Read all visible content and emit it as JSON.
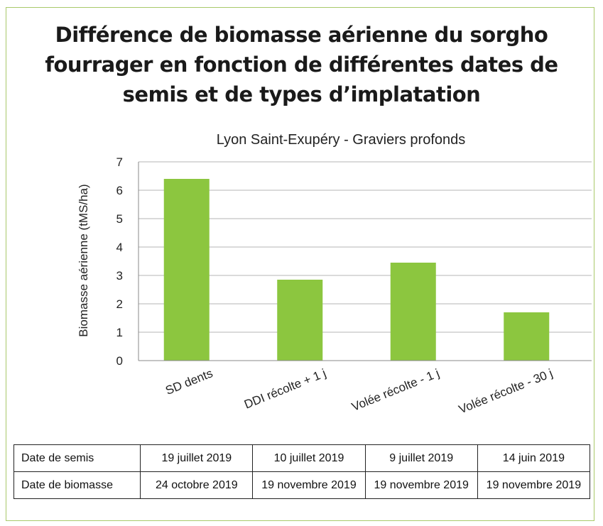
{
  "header": {
    "title_line1": "Différence de biomasse aérienne du sorgho",
    "title_line2": "fourrager en fonction de différentes dates de",
    "title_line3": "semis et de types d’implatation"
  },
  "chart_data": {
    "type": "bar",
    "title": "Lyon Saint-Exupéry - Graviers profonds",
    "xlabel": "",
    "ylabel": "Biomasse aérienne (tMS/ha)",
    "ylim": [
      0,
      7
    ],
    "yticks": [
      "0",
      "1",
      "2",
      "3",
      "4",
      "5",
      "6",
      "7"
    ],
    "grid": true,
    "bar_color": "#8cc63f",
    "categories": [
      "SD dents",
      "DDI récolte + 1 j",
      "Volée récolte - 1 j",
      "Volée récolte - 30 j"
    ],
    "values": [
      6.4,
      2.85,
      3.45,
      1.7
    ]
  },
  "table": {
    "rows": [
      {
        "label": "Date de semis",
        "cells": [
          "19 juillet 2019",
          "10 juillet 2019",
          "9 juillet 2019",
          "14 juin 2019"
        ]
      },
      {
        "label": "Date de biomasse",
        "cells": [
          "24 octobre 2019",
          "19 novembre 2019",
          "19 novembre 2019",
          "19 novembre 2019"
        ]
      }
    ]
  }
}
